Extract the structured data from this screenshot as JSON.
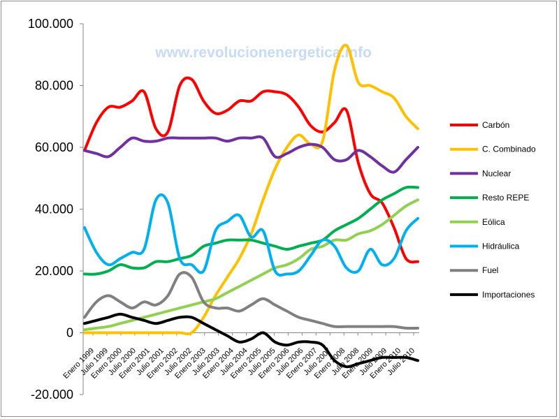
{
  "watermark": "www.revolucionenergetica.info",
  "chart_data": {
    "type": "line",
    "title": "",
    "xlabel": "",
    "ylabel": "",
    "ylim": [
      -20000,
      100000
    ],
    "yticks": [
      -20000,
      0,
      20000,
      40000,
      60000,
      80000,
      100000
    ],
    "ytick_labels": [
      "-20.000",
      "0",
      "20.000",
      "40.000",
      "60.000",
      "80.000",
      "100.000"
    ],
    "grid": false,
    "legend_position": "right",
    "x_start": "1999-01",
    "x_step_months": 3,
    "x_tick_labels": [
      "Enero 1999",
      "Julio 1999",
      "Enero 2000",
      "Julio 2000",
      "Enero 2001",
      "Julio 2001",
      "Enero 2002",
      "Julio 2002",
      "Enero 2003",
      "Julio 2003",
      "Enero 2004",
      "Julio 2004",
      "Enero 2005",
      "Julio 2005",
      "Enero 2006",
      "Julio 2006",
      "Enero 2007",
      "Julio 2007",
      "Enero 2008",
      "Julio 2008",
      "Enero 2009",
      "Julio 2009",
      "Enero 2010",
      "Julio 2010"
    ],
    "series": [
      {
        "name": "Carbón",
        "color": "#ff0000",
        "values": [
          59000,
          68000,
          73000,
          73000,
          75000,
          78000,
          66000,
          65000,
          80000,
          82000,
          75000,
          71000,
          72000,
          75000,
          75000,
          78000,
          78000,
          77000,
          73000,
          67000,
          65000,
          68000,
          72000,
          55000,
          45000,
          42000,
          34000,
          24000,
          23000
        ]
      },
      {
        "name": "C. Combinado",
        "color": "#ffc000",
        "values": [
          0,
          0,
          0,
          0,
          0,
          0,
          0,
          0,
          0,
          0,
          5000,
          12000,
          18000,
          24000,
          32000,
          43000,
          53000,
          60000,
          64000,
          61000,
          62000,
          85000,
          93000,
          81000,
          80000,
          78000,
          76000,
          70000,
          66000
        ]
      },
      {
        "name": "Nuclear",
        "color": "#7030a0",
        "values": [
          59000,
          58000,
          57000,
          60000,
          63000,
          62000,
          62000,
          63000,
          63000,
          63000,
          63000,
          63000,
          62000,
          63000,
          63000,
          63000,
          57000,
          58000,
          60000,
          61000,
          60000,
          56000,
          56000,
          59000,
          57000,
          54000,
          52000,
          56000,
          60000
        ]
      },
      {
        "name": "Resto REPE",
        "color": "#00b050",
        "values": [
          19000,
          19000,
          20000,
          22000,
          21000,
          21000,
          23000,
          23000,
          24000,
          25000,
          28000,
          29000,
          30000,
          30000,
          30000,
          29000,
          28000,
          27000,
          28000,
          29000,
          30000,
          33000,
          35000,
          37000,
          40000,
          43000,
          45000,
          47000,
          47000
        ]
      },
      {
        "name": "Eólica",
        "color": "#92d050",
        "values": [
          1000,
          1500,
          2000,
          3000,
          4000,
          5000,
          6000,
          7000,
          8000,
          9000,
          10000,
          11000,
          13000,
          15000,
          17000,
          19000,
          21000,
          22000,
          24000,
          27000,
          28000,
          30000,
          30000,
          32000,
          33000,
          35000,
          38000,
          41000,
          43000
        ]
      },
      {
        "name": "Hidráulica",
        "color": "#00b0f0",
        "values": [
          34000,
          26000,
          22000,
          24000,
          26000,
          27000,
          43000,
          42000,
          24000,
          22000,
          20000,
          33000,
          36000,
          38000,
          31000,
          33000,
          20000,
          19000,
          20000,
          25000,
          30000,
          28000,
          21000,
          20000,
          27000,
          22000,
          24000,
          33000,
          37000
        ]
      },
      {
        "name": "Fuel",
        "color": "#808080",
        "values": [
          5000,
          10000,
          12000,
          10000,
          8000,
          10000,
          9000,
          12000,
          19000,
          18000,
          10000,
          8000,
          8000,
          7000,
          9000,
          11000,
          9000,
          7000,
          5000,
          4000,
          3000,
          2000,
          2000,
          2000,
          2000,
          2000,
          2000,
          1500,
          1500
        ]
      },
      {
        "name": "Importaciones",
        "color": "#000000",
        "values": [
          3000,
          4000,
          5000,
          6000,
          5000,
          4000,
          3000,
          4000,
          5000,
          5000,
          3000,
          1000,
          -1000,
          -3000,
          -2000,
          0,
          -3000,
          -4000,
          -3000,
          -3000,
          -4000,
          -9000,
          -11000,
          -10000,
          -9000,
          -8000,
          -8000,
          -8000,
          -9000
        ]
      }
    ]
  }
}
